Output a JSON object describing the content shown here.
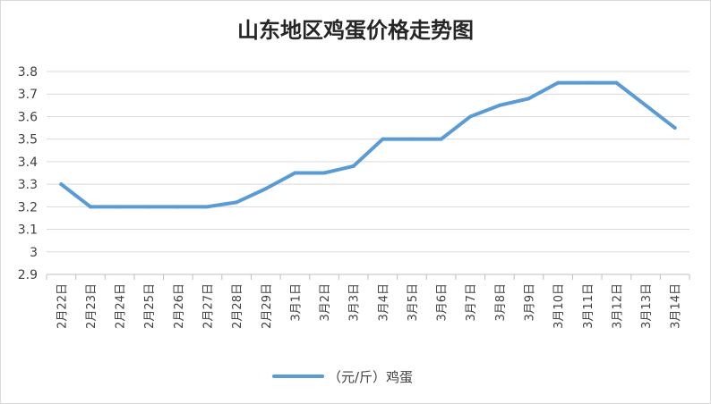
{
  "chart_data": {
    "type": "line",
    "title": "山东地区鸡蛋价格走势图",
    "xlabel": "",
    "ylabel": "",
    "categories": [
      "2月22日",
      "2月23日",
      "2月24日",
      "2月25日",
      "2月26日",
      "2月27日",
      "2月28日",
      "2月29日",
      "3月1日",
      "3月2日",
      "3月3日",
      "3月4日",
      "3月5日",
      "3月6日",
      "3月7日",
      "3月8日",
      "3月9日",
      "3月10日",
      "3月11日",
      "3月12日",
      "3月13日",
      "3月14日"
    ],
    "series": [
      {
        "name": "（元/斤）鸡蛋",
        "values": [
          3.3,
          3.2,
          3.2,
          3.2,
          3.2,
          3.2,
          3.22,
          3.28,
          3.35,
          3.35,
          3.38,
          3.5,
          3.5,
          3.5,
          3.6,
          3.65,
          3.68,
          3.75,
          3.75,
          3.75,
          3.65,
          3.55
        ]
      }
    ],
    "ylim": [
      2.9,
      3.8
    ],
    "yticks": [
      "2.9",
      "3",
      "3.1",
      "3.2",
      "3.3",
      "3.4",
      "3.5",
      "3.6",
      "3.7",
      "3.8"
    ],
    "grid": true,
    "legend_position": "bottom",
    "series_color": "#5b9bd5",
    "grid_color": "#d9d9d9"
  }
}
